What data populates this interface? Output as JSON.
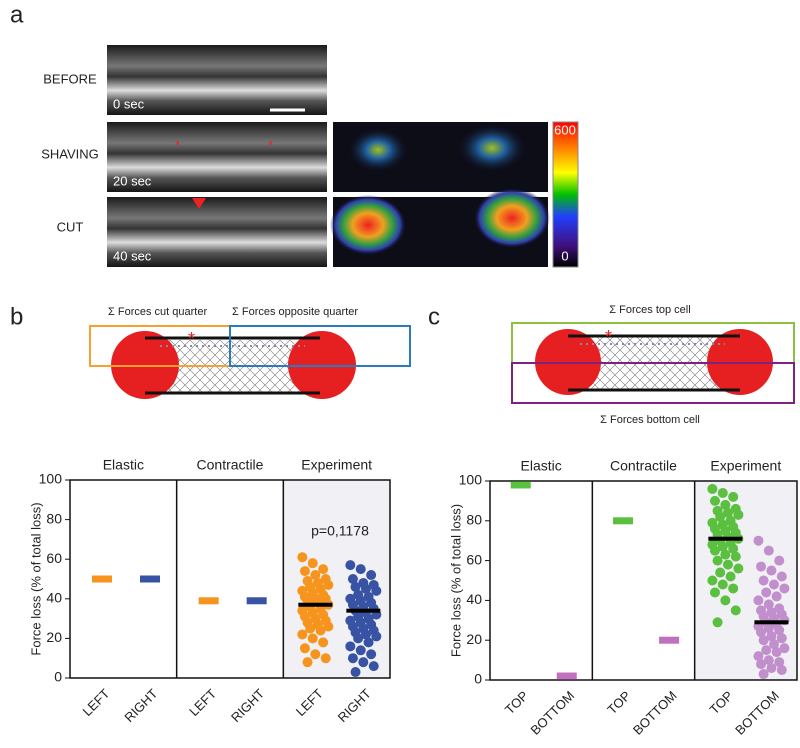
{
  "panel_a": {
    "label": "a",
    "rows": [
      "BEFORE",
      "SHAVING",
      "CUT"
    ],
    "times": [
      "0 sec",
      "20 sec",
      "40 sec"
    ],
    "colorbar": {
      "max": "600",
      "min": "0"
    }
  },
  "panel_b": {
    "label": "b",
    "diagram": [
      "Σ Forces cut quarter",
      "Σ Forces opposite quarter"
    ],
    "annotation": "p=0,1178"
  },
  "panel_c": {
    "label": "c",
    "diagram": [
      "Σ Forces top cell",
      "Σ Forces bottom cell"
    ]
  },
  "chart_data": [
    {
      "type": "dotplot",
      "ylabel": "Force loss (% of total loss)",
      "ylim": [
        0,
        100
      ],
      "yticks": [
        0,
        20,
        40,
        60,
        80,
        100
      ],
      "groups": [
        "Elastic",
        "Contractile",
        "Experiment"
      ],
      "categories": [
        "LEFT",
        "RIGHT",
        "LEFT",
        "RIGHT",
        "LEFT",
        "RIGHT"
      ],
      "colors": [
        "#f7941d",
        "#3953a4",
        "#f7941d",
        "#3953a4",
        "#f7941d",
        "#3953a4"
      ],
      "values": [
        50,
        50,
        39,
        39,
        37,
        34
      ],
      "points": [
        [],
        [],
        [],
        [],
        [
          61,
          58,
          55,
          54,
          52,
          50,
          49,
          48,
          47,
          46,
          45,
          44,
          43,
          42,
          41,
          40,
          40,
          39,
          38,
          37,
          36,
          35,
          34,
          33,
          32,
          31,
          30,
          29,
          28,
          27,
          26,
          25,
          24,
          22,
          20,
          18,
          15,
          12,
          10,
          8
        ],
        [
          57,
          55,
          52,
          50,
          48,
          47,
          46,
          45,
          44,
          42,
          41,
          40,
          39,
          38,
          37,
          36,
          35,
          34,
          33,
          32,
          31,
          30,
          29,
          28,
          27,
          26,
          25,
          24,
          23,
          22,
          21,
          20,
          18,
          16,
          14,
          12,
          10,
          8,
          6,
          3
        ]
      ]
    },
    {
      "type": "dotplot",
      "ylabel": "Force loss (% of total loss)",
      "ylim": [
        0,
        100
      ],
      "yticks": [
        0,
        20,
        40,
        60,
        80,
        100
      ],
      "groups": [
        "Elastic",
        "Contractile",
        "Experiment"
      ],
      "categories": [
        "TOP",
        "BOTTOM",
        "TOP",
        "BOTTOM",
        "TOP",
        "BOTTOM"
      ],
      "colors": [
        "#5bbf3f",
        "#c170c0",
        "#5bbf3f",
        "#c170c0",
        "#5bbf3f",
        "#c18fcb"
      ],
      "values": [
        98,
        2,
        80,
        20,
        71,
        29
      ],
      "points": [
        [],
        [],
        [],
        [],
        [
          96,
          94,
          92,
          90,
          88,
          86,
          85,
          84,
          83,
          82,
          80,
          79,
          78,
          77,
          76,
          75,
          74,
          73,
          72,
          71,
          70,
          69,
          68,
          67,
          66,
          65,
          63,
          62,
          60,
          58,
          56,
          54,
          52,
          50,
          48,
          46,
          44,
          40,
          35,
          29
        ],
        [
          70,
          65,
          60,
          57,
          55,
          52,
          50,
          48,
          46,
          44,
          42,
          40,
          38,
          36,
          35,
          34,
          33,
          32,
          31,
          30,
          29,
          28,
          27,
          26,
          25,
          24,
          22,
          21,
          20,
          18,
          16,
          15,
          14,
          12,
          10,
          9,
          8,
          6,
          5,
          3
        ]
      ]
    }
  ]
}
